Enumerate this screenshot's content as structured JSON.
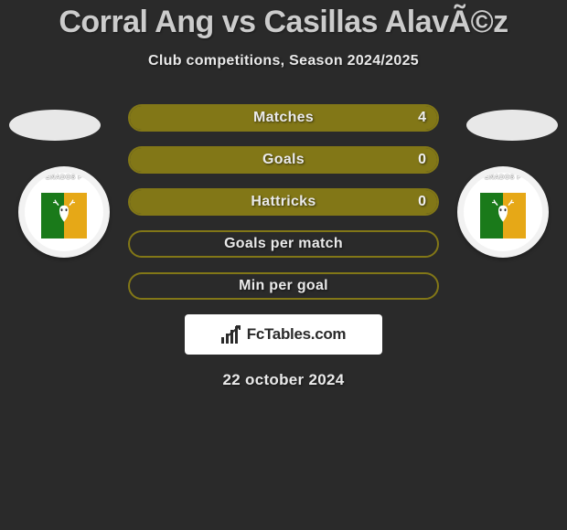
{
  "title": "Corral Ang vs Casillas AlavÃ©z",
  "subtitle": "Club competitions, Season 2024/2025",
  "date": "22 october 2024",
  "logo_text": "FcTables.com",
  "colors": {
    "background": "#2a2a2a",
    "bar_border": "#827717",
    "bar_fill": "#827717",
    "text": "#eaeaea",
    "title_text": "#cccccc"
  },
  "stats": [
    {
      "label": "Matches",
      "right_value": "4",
      "fill_pct": 100
    },
    {
      "label": "Goals",
      "right_value": "0",
      "fill_pct": 100
    },
    {
      "label": "Hattricks",
      "right_value": "0",
      "fill_pct": 100
    },
    {
      "label": "Goals per match",
      "right_value": "",
      "fill_pct": 0
    },
    {
      "label": "Min per goal",
      "right_value": "",
      "fill_pct": 0
    }
  ],
  "badges": {
    "left": {
      "arc_text": "ENADOS F",
      "club": "Venados FC"
    },
    "right": {
      "arc_text": "ENADOS F",
      "club": "Venados FC"
    }
  }
}
